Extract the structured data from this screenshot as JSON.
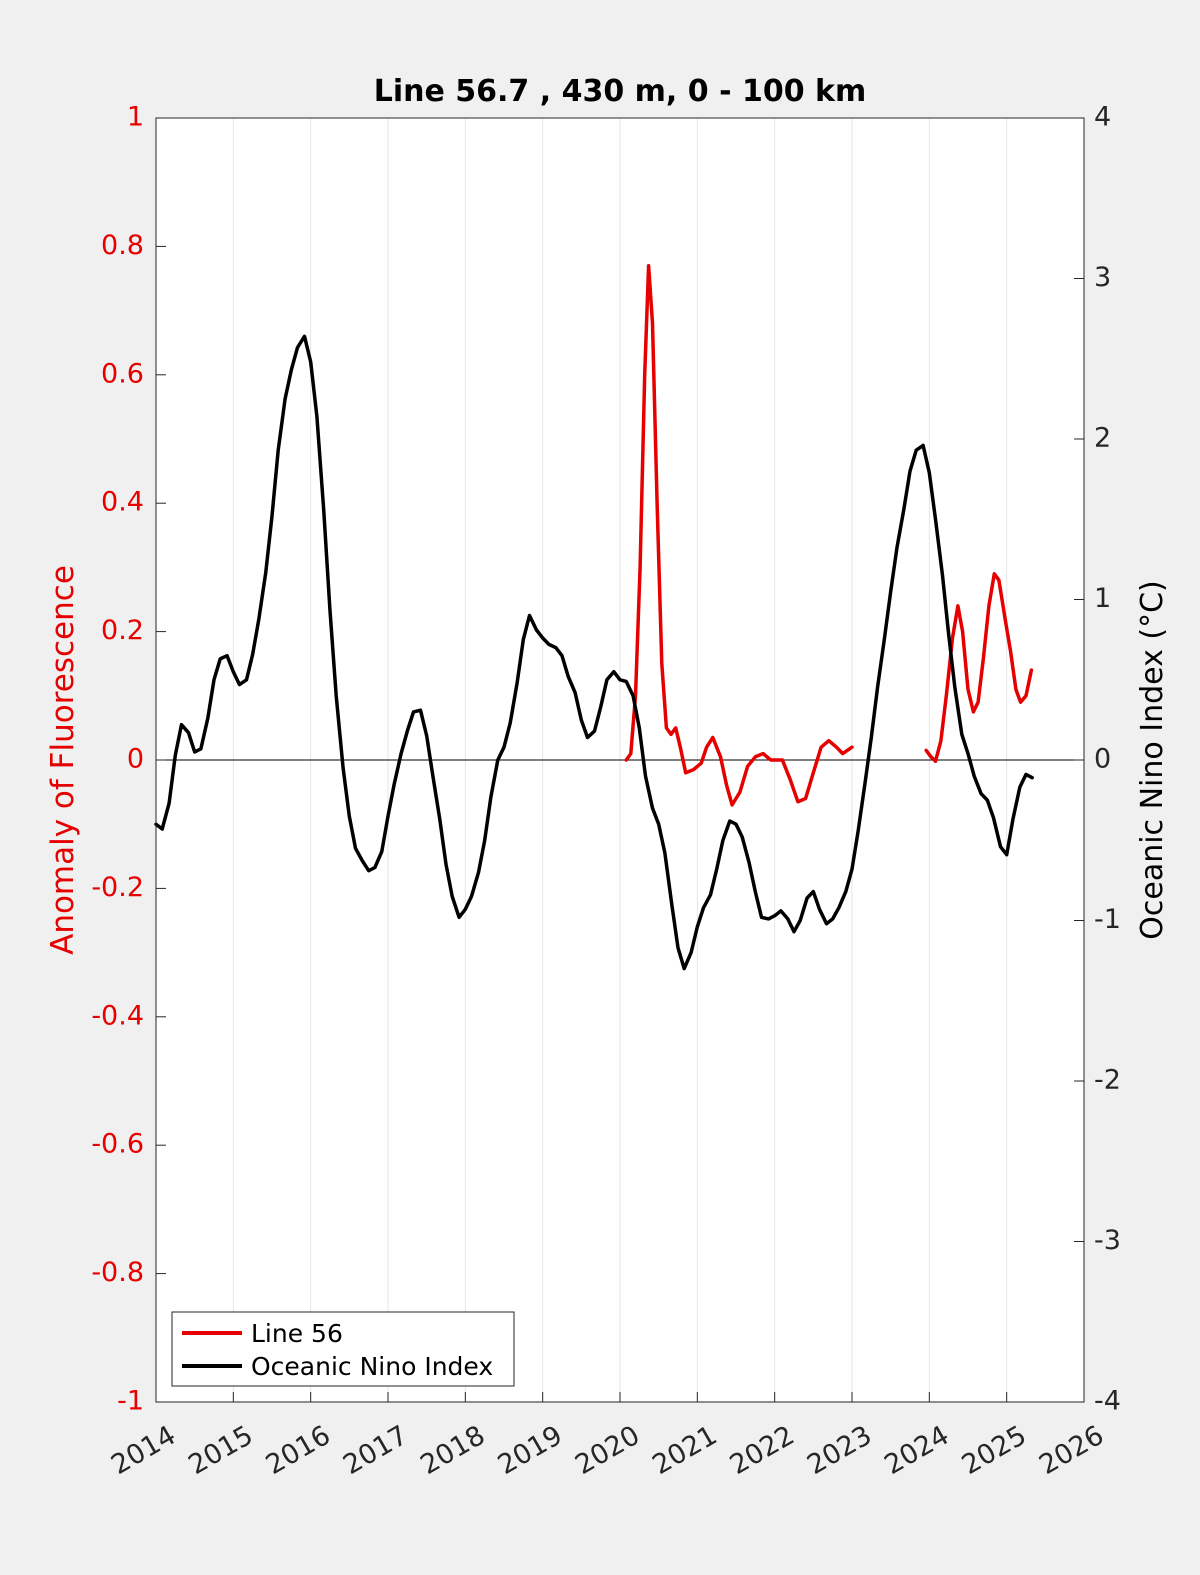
{
  "chart_data": {
    "type": "line",
    "title": "Line 56.7 , 430 m, 0 - 100 km",
    "xlabel": "",
    "xlim": [
      2014,
      2026
    ],
    "xticks": [
      "2014",
      "2015",
      "2016",
      "2017",
      "2018",
      "2019",
      "2020",
      "2021",
      "2022",
      "2023",
      "2024",
      "2025",
      "2026"
    ],
    "grid_x": true,
    "y_left": {
      "label": "Anomaly of Fluorescence",
      "ylim": [
        -1,
        1
      ],
      "ticks": [
        "-1",
        "-0.8",
        "-0.6",
        "-0.4",
        "-0.2",
        "0",
        "0.2",
        "0.4",
        "0.6",
        "0.8",
        "1"
      ],
      "color": "#e60000"
    },
    "y_right": {
      "label": "Oceanic Nino Index (°C)",
      "ylim": [
        -4,
        4
      ],
      "ticks": [
        "-4",
        "-3",
        "-2",
        "-1",
        "0",
        "1",
        "2",
        "3",
        "4"
      ],
      "color": "#000000"
    },
    "legend": {
      "position": "bottom-left"
    },
    "series": [
      {
        "name": "Line 56",
        "axis": "left",
        "color": "#e60000",
        "segments": [
          [
            [
              2020.08,
              0.0
            ],
            [
              2020.14,
              0.01
            ],
            [
              2020.2,
              0.1
            ],
            [
              2020.26,
              0.3
            ],
            [
              2020.32,
              0.6
            ],
            [
              2020.37,
              0.77
            ],
            [
              2020.42,
              0.68
            ],
            [
              2020.48,
              0.4
            ],
            [
              2020.54,
              0.15
            ],
            [
              2020.6,
              0.05
            ],
            [
              2020.66,
              0.04
            ],
            [
              2020.72,
              0.05
            ],
            [
              2020.78,
              0.02
            ],
            [
              2020.85,
              -0.02
            ],
            [
              2020.95,
              -0.015
            ],
            [
              2021.05,
              -0.005
            ],
            [
              2021.12,
              0.02
            ],
            [
              2021.2,
              0.035
            ],
            [
              2021.3,
              0.005
            ],
            [
              2021.38,
              -0.04
            ],
            [
              2021.45,
              -0.07
            ],
            [
              2021.55,
              -0.05
            ],
            [
              2021.65,
              -0.01
            ],
            [
              2021.75,
              0.005
            ],
            [
              2021.85,
              0.01
            ],
            [
              2021.95,
              0.0
            ],
            [
              2022.1,
              0.0
            ],
            [
              2022.2,
              -0.03
            ],
            [
              2022.3,
              -0.065
            ],
            [
              2022.4,
              -0.06
            ],
            [
              2022.5,
              -0.02
            ],
            [
              2022.6,
              0.02
            ],
            [
              2022.7,
              0.03
            ],
            [
              2022.8,
              0.02
            ],
            [
              2022.88,
              0.01
            ],
            [
              2023.0,
              0.02
            ]
          ],
          [
            [
              2023.96,
              0.015
            ],
            [
              2024.02,
              0.005
            ],
            [
              2024.08,
              -0.002
            ],
            [
              2024.15,
              0.03
            ],
            [
              2024.22,
              0.1
            ],
            [
              2024.3,
              0.19
            ],
            [
              2024.37,
              0.24
            ],
            [
              2024.43,
              0.2
            ],
            [
              2024.5,
              0.11
            ],
            [
              2024.57,
              0.075
            ],
            [
              2024.63,
              0.09
            ],
            [
              2024.7,
              0.16
            ],
            [
              2024.77,
              0.24
            ],
            [
              2024.84,
              0.29
            ],
            [
              2024.9,
              0.28
            ],
            [
              2024.98,
              0.22
            ],
            [
              2025.05,
              0.17
            ],
            [
              2025.12,
              0.11
            ],
            [
              2025.18,
              0.09
            ],
            [
              2025.25,
              0.1
            ],
            [
              2025.32,
              0.14
            ]
          ]
        ]
      },
      {
        "name": "Oceanic Nino Index",
        "axis": "right",
        "color": "#000000",
        "points": [
          [
            2014.0,
            -0.4
          ],
          [
            2014.08,
            -0.43
          ],
          [
            2014.17,
            -0.27
          ],
          [
            2014.25,
            0.03
          ],
          [
            2014.33,
            0.22
          ],
          [
            2014.42,
            0.17
          ],
          [
            2014.5,
            0.05
          ],
          [
            2014.58,
            0.07
          ],
          [
            2014.67,
            0.26
          ],
          [
            2014.75,
            0.5
          ],
          [
            2014.83,
            0.63
          ],
          [
            2014.92,
            0.65
          ],
          [
            2015.0,
            0.55
          ],
          [
            2015.08,
            0.47
          ],
          [
            2015.17,
            0.5
          ],
          [
            2015.25,
            0.66
          ],
          [
            2015.33,
            0.88
          ],
          [
            2015.42,
            1.17
          ],
          [
            2015.5,
            1.52
          ],
          [
            2015.58,
            1.93
          ],
          [
            2015.67,
            2.25
          ],
          [
            2015.75,
            2.43
          ],
          [
            2015.83,
            2.57
          ],
          [
            2015.92,
            2.64
          ],
          [
            2016.0,
            2.48
          ],
          [
            2016.08,
            2.14
          ],
          [
            2016.17,
            1.55
          ],
          [
            2016.25,
            0.93
          ],
          [
            2016.33,
            0.4
          ],
          [
            2016.42,
            -0.05
          ],
          [
            2016.5,
            -0.35
          ],
          [
            2016.58,
            -0.55
          ],
          [
            2016.67,
            -0.63
          ],
          [
            2016.75,
            -0.69
          ],
          [
            2016.83,
            -0.67
          ],
          [
            2016.92,
            -0.57
          ],
          [
            2017.0,
            -0.35
          ],
          [
            2017.08,
            -0.15
          ],
          [
            2017.17,
            0.04
          ],
          [
            2017.25,
            0.18
          ],
          [
            2017.33,
            0.3
          ],
          [
            2017.42,
            0.31
          ],
          [
            2017.5,
            0.15
          ],
          [
            2017.58,
            -0.1
          ],
          [
            2017.67,
            -0.37
          ],
          [
            2017.75,
            -0.65
          ],
          [
            2017.83,
            -0.85
          ],
          [
            2017.92,
            -0.98
          ],
          [
            2018.0,
            -0.93
          ],
          [
            2018.08,
            -0.85
          ],
          [
            2018.17,
            -0.7
          ],
          [
            2018.25,
            -0.5
          ],
          [
            2018.33,
            -0.23
          ],
          [
            2018.42,
            0.0
          ],
          [
            2018.5,
            0.08
          ],
          [
            2018.58,
            0.23
          ],
          [
            2018.67,
            0.48
          ],
          [
            2018.75,
            0.75
          ],
          [
            2018.83,
            0.9
          ],
          [
            2018.92,
            0.81
          ],
          [
            2019.0,
            0.76
          ],
          [
            2019.08,
            0.72
          ],
          [
            2019.17,
            0.7
          ],
          [
            2019.25,
            0.65
          ],
          [
            2019.33,
            0.52
          ],
          [
            2019.42,
            0.42
          ],
          [
            2019.5,
            0.25
          ],
          [
            2019.58,
            0.14
          ],
          [
            2019.67,
            0.18
          ],
          [
            2019.75,
            0.33
          ],
          [
            2019.83,
            0.5
          ],
          [
            2019.92,
            0.55
          ],
          [
            2020.0,
            0.5
          ],
          [
            2020.08,
            0.49
          ],
          [
            2020.17,
            0.4
          ],
          [
            2020.25,
            0.2
          ],
          [
            2020.33,
            -0.1
          ],
          [
            2020.42,
            -0.3
          ],
          [
            2020.5,
            -0.4
          ],
          [
            2020.58,
            -0.58
          ],
          [
            2020.67,
            -0.9
          ],
          [
            2020.75,
            -1.17
          ],
          [
            2020.83,
            -1.3
          ],
          [
            2020.92,
            -1.2
          ],
          [
            2021.0,
            -1.04
          ],
          [
            2021.08,
            -0.92
          ],
          [
            2021.17,
            -0.84
          ],
          [
            2021.25,
            -0.68
          ],
          [
            2021.33,
            -0.5
          ],
          [
            2021.42,
            -0.38
          ],
          [
            2021.5,
            -0.4
          ],
          [
            2021.58,
            -0.48
          ],
          [
            2021.67,
            -0.64
          ],
          [
            2021.75,
            -0.82
          ],
          [
            2021.83,
            -0.98
          ],
          [
            2021.92,
            -0.99
          ],
          [
            2022.0,
            -0.97
          ],
          [
            2022.08,
            -0.94
          ],
          [
            2022.17,
            -0.99
          ],
          [
            2022.25,
            -1.07
          ],
          [
            2022.33,
            -1.0
          ],
          [
            2022.42,
            -0.86
          ],
          [
            2022.5,
            -0.82
          ],
          [
            2022.58,
            -0.93
          ],
          [
            2022.67,
            -1.02
          ],
          [
            2022.75,
            -0.99
          ],
          [
            2022.83,
            -0.92
          ],
          [
            2022.92,
            -0.82
          ],
          [
            2023.0,
            -0.68
          ],
          [
            2023.08,
            -0.44
          ],
          [
            2023.17,
            -0.14
          ],
          [
            2023.25,
            0.14
          ],
          [
            2023.33,
            0.45
          ],
          [
            2023.42,
            0.76
          ],
          [
            2023.5,
            1.05
          ],
          [
            2023.58,
            1.32
          ],
          [
            2023.67,
            1.56
          ],
          [
            2023.75,
            1.8
          ],
          [
            2023.83,
            1.93
          ],
          [
            2023.92,
            1.96
          ],
          [
            2024.0,
            1.79
          ],
          [
            2024.08,
            1.5
          ],
          [
            2024.17,
            1.15
          ],
          [
            2024.25,
            0.78
          ],
          [
            2024.33,
            0.45
          ],
          [
            2024.42,
            0.16
          ],
          [
            2024.5,
            0.04
          ],
          [
            2024.58,
            -0.1
          ],
          [
            2024.67,
            -0.21
          ],
          [
            2024.75,
            -0.25
          ],
          [
            2024.83,
            -0.36
          ],
          [
            2024.92,
            -0.54
          ],
          [
            2025.0,
            -0.59
          ],
          [
            2025.08,
            -0.37
          ],
          [
            2025.17,
            -0.17
          ],
          [
            2025.25,
            -0.09
          ],
          [
            2025.33,
            -0.11
          ]
        ]
      }
    ]
  }
}
